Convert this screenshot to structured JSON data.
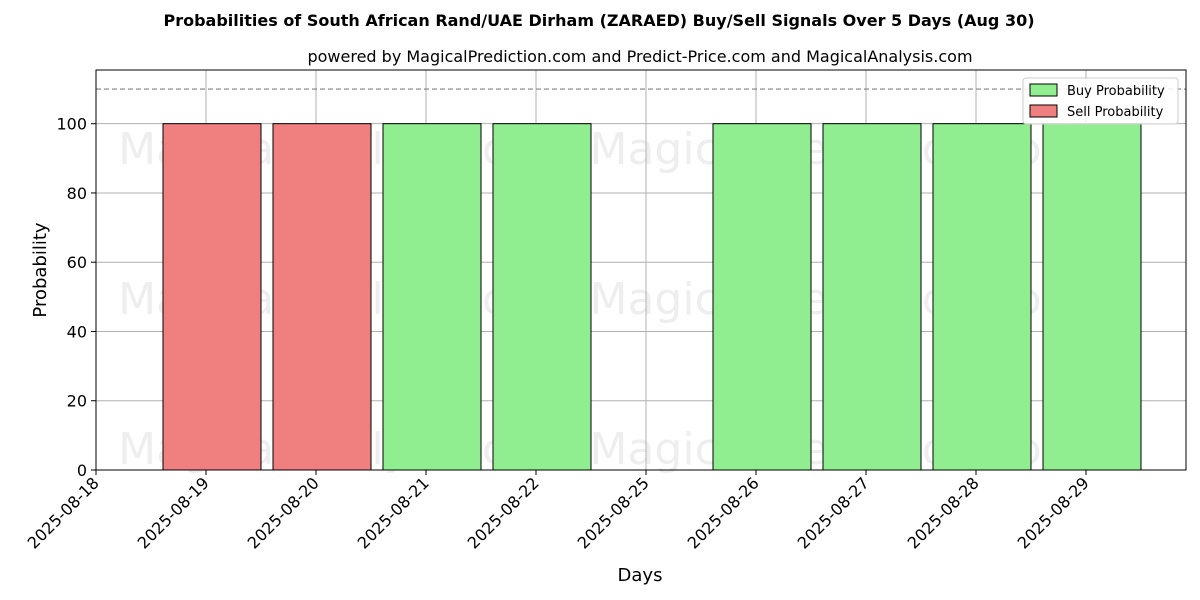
{
  "chart_data": {
    "type": "bar",
    "title": "Probabilities of South African Rand/UAE Dirham (ZARAED) Buy/Sell Signals Over 5 Days (Aug 30)",
    "subtitle": "powered by MagicalPrediction.com and Predict-Price.com and MagicalAnalysis.com",
    "xlabel": "Days",
    "ylabel": "Probability",
    "x_ticks": [
      "2025-08-18",
      "2025-08-19",
      "2025-08-20",
      "2025-08-21",
      "2025-08-22",
      "2025-08-25",
      "2025-08-26",
      "2025-08-27",
      "2025-08-28",
      "2025-08-29"
    ],
    "y_ticks": [
      0,
      20,
      40,
      60,
      80,
      100
    ],
    "ylim": [
      0,
      115.5
    ],
    "reference_line": 110,
    "grid": true,
    "legend_position": "top-right",
    "colors": {
      "buy": "#90ee90",
      "sell": "#f08080"
    },
    "series": [
      {
        "name": "Buy Probability",
        "key": "buy",
        "points": [
          {
            "x": "2025-08-21",
            "y": 100
          },
          {
            "x": "2025-08-22",
            "y": 100
          },
          {
            "x": "2025-08-26",
            "y": 100
          },
          {
            "x": "2025-08-27",
            "y": 100
          },
          {
            "x": "2025-08-28",
            "y": 100
          },
          {
            "x": "2025-08-29",
            "y": 100
          }
        ]
      },
      {
        "name": "Sell Probability",
        "key": "sell",
        "points": [
          {
            "x": "2025-08-19",
            "y": 100
          },
          {
            "x": "2025-08-20",
            "y": 100
          }
        ]
      }
    ],
    "watermarks": [
      "MagicalAnalysis.com",
      "MagicalPrediction.com"
    ]
  }
}
